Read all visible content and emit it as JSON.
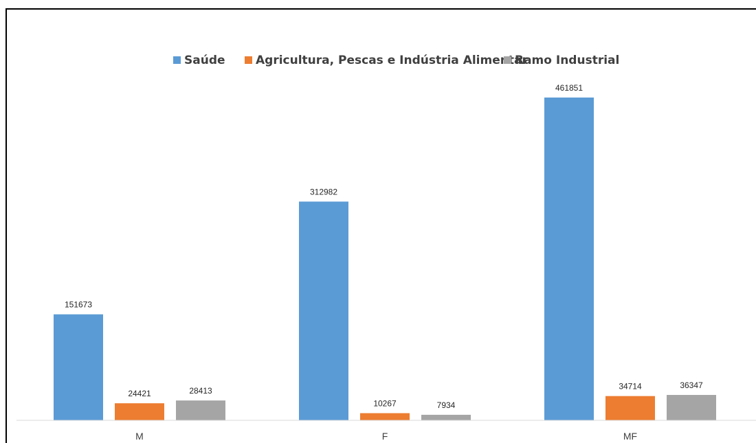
{
  "chart_data": {
    "type": "bar",
    "categories": [
      "M",
      "F",
      "MF"
    ],
    "series": [
      {
        "name": "Saúde",
        "color": "#5B9BD5",
        "values": [
          151673,
          312982,
          461851
        ]
      },
      {
        "name": "Agricultura, Pescas e Indústria Alimentar",
        "color": "#ED7D31",
        "values": [
          24421,
          10267,
          34714
        ]
      },
      {
        "name": "Ramo Industrial",
        "color": "#A5A5A5",
        "values": [
          28413,
          7934,
          36347
        ]
      }
    ],
    "title": "",
    "xlabel": "",
    "ylabel": "",
    "ylim": [
      0,
      470000
    ],
    "grid": false,
    "legend_position": "top",
    "data_labels": true
  }
}
